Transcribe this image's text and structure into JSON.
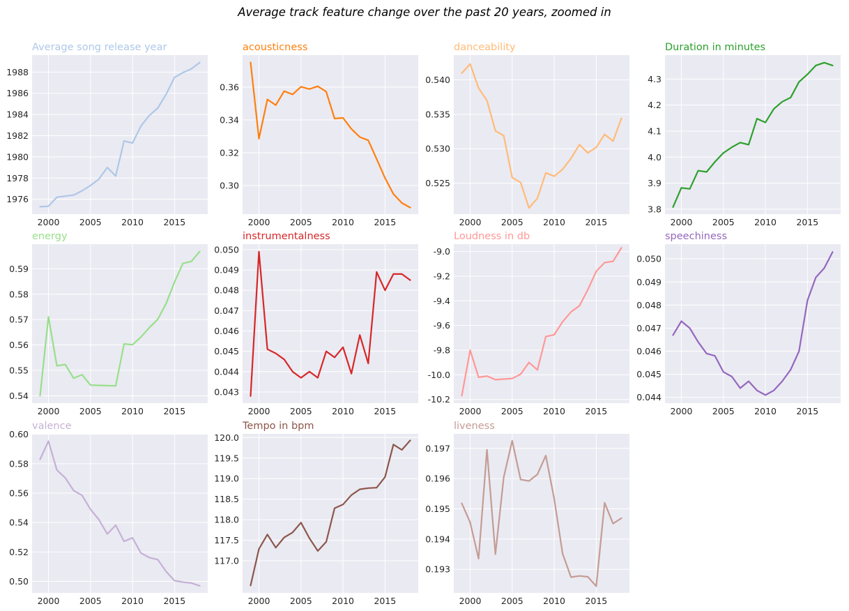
{
  "title": "Average track feature change over the past 20 years, zoomed in",
  "chart_data": [
    {
      "type": "line",
      "title": "Average song release year",
      "color": "#aec7e8",
      "x": [
        1999,
        2000,
        2001,
        2002,
        2003,
        2004,
        2005,
        2006,
        2007,
        2008,
        2009,
        2010,
        2011,
        2012,
        2013,
        2014,
        2015,
        2016,
        2017,
        2018
      ],
      "values": [
        1975.3,
        1975.35,
        1976.2,
        1976.3,
        1976.4,
        1976.8,
        1977.3,
        1977.9,
        1979.0,
        1978.2,
        1981.5,
        1981.3,
        1982.9,
        1983.9,
        1984.6,
        1985.9,
        1987.5,
        1987.95,
        1988.3,
        1988.9
      ],
      "yticks": [
        "1976",
        "1978",
        "1980",
        "1982",
        "1984",
        "1986",
        "1988"
      ],
      "xticks": [
        "2000",
        "2005",
        "2010",
        "2015"
      ],
      "xlim": [
        1998.05,
        2018.95
      ],
      "ylim": [
        1974.6,
        1989.6
      ],
      "grid": true
    },
    {
      "type": "line",
      "title": "acousticness",
      "color": "#ff7f0e",
      "x": [
        1999,
        2000,
        2001,
        2002,
        2003,
        2004,
        2005,
        2006,
        2007,
        2008,
        2009,
        2010,
        2011,
        2012,
        2013,
        2014,
        2015,
        2016,
        2017,
        2018
      ],
      "values": [
        0.375,
        0.3285,
        0.3525,
        0.349,
        0.3575,
        0.3555,
        0.3602,
        0.3588,
        0.3605,
        0.3572,
        0.3408,
        0.3412,
        0.3345,
        0.3295,
        0.3275,
        0.3162,
        0.3045,
        0.2948,
        0.2893,
        0.2865
      ],
      "yticks": [
        "0.30",
        "0.32",
        "0.34",
        "0.36"
      ],
      "xticks": [
        "2000",
        "2005",
        "2010",
        "2015"
      ],
      "xlim": [
        1998.05,
        2018.95
      ],
      "ylim": [
        0.2825,
        0.3795
      ],
      "grid": true
    },
    {
      "type": "line",
      "title": "danceability",
      "color": "#ffbb78",
      "x": [
        1999,
        2000,
        2001,
        2002,
        2003,
        2004,
        2005,
        2006,
        2007,
        2008,
        2009,
        2010,
        2011,
        2012,
        2013,
        2014,
        2015,
        2016,
        2017,
        2018
      ],
      "values": [
        0.541,
        0.5423,
        0.5388,
        0.537,
        0.5326,
        0.5319,
        0.5258,
        0.5251,
        0.5214,
        0.5228,
        0.5265,
        0.526,
        0.527,
        0.5286,
        0.5306,
        0.5294,
        0.5302,
        0.5321,
        0.5311,
        0.5344
      ],
      "yticks": [
        "0.525",
        "0.530",
        "0.535",
        "0.540"
      ],
      "xticks": [
        "2000",
        "2005",
        "2010",
        "2015"
      ],
      "xlim": [
        1998.05,
        2018.95
      ],
      "ylim": [
        0.5205,
        0.5436
      ],
      "grid": true
    },
    {
      "type": "line",
      "title": "Duration in minutes",
      "color": "#2ca02c",
      "x": [
        1999,
        2000,
        2001,
        2002,
        2003,
        2004,
        2005,
        2006,
        2007,
        2008,
        2009,
        2010,
        2011,
        2012,
        2013,
        2014,
        2015,
        2016,
        2017,
        2018
      ],
      "values": [
        3.808,
        3.882,
        3.878,
        3.948,
        3.943,
        3.982,
        4.016,
        4.038,
        4.056,
        4.048,
        4.148,
        4.133,
        4.185,
        4.213,
        4.229,
        4.289,
        4.318,
        4.352,
        4.363,
        4.352
      ],
      "yticks": [
        "3.8",
        "3.9",
        "4.0",
        "4.1",
        "4.2",
        "4.3"
      ],
      "xticks": [
        "2000",
        "2005",
        "2010",
        "2015"
      ],
      "xlim": [
        1998.05,
        2018.95
      ],
      "ylim": [
        3.781,
        4.392
      ],
      "grid": true
    },
    {
      "type": "line",
      "title": "energy",
      "color": "#98df8a",
      "x": [
        1999,
        2000,
        2001,
        2002,
        2003,
        2004,
        2005,
        2006,
        2007,
        2008,
        2009,
        2010,
        2011,
        2012,
        2013,
        2014,
        2015,
        2016,
        2017,
        2018
      ],
      "values": [
        0.54,
        0.5711,
        0.5518,
        0.5523,
        0.5469,
        0.5483,
        0.5442,
        0.5441,
        0.544,
        0.5439,
        0.5604,
        0.5601,
        0.5631,
        0.5668,
        0.5701,
        0.5763,
        0.5848,
        0.5921,
        0.5929,
        0.5968
      ],
      "yticks": [
        "0.54",
        "0.55",
        "0.56",
        "0.57",
        "0.58",
        "0.59"
      ],
      "xticks": [
        "2000",
        "2005",
        "2010",
        "2015"
      ],
      "xlim": [
        1998.05,
        2018.95
      ],
      "ylim": [
        0.5371,
        0.5997
      ],
      "grid": true
    },
    {
      "type": "line",
      "title": "instrumentalness",
      "color": "#d62728",
      "x": [
        1999,
        2000,
        2001,
        2002,
        2003,
        2004,
        2005,
        2006,
        2007,
        2008,
        2009,
        2010,
        2011,
        2012,
        2013,
        2014,
        2015,
        2016,
        2017,
        2018
      ],
      "values": [
        0.0428,
        0.0499,
        0.0451,
        0.0449,
        0.0446,
        0.044,
        0.0437,
        0.044,
        0.0437,
        0.045,
        0.0447,
        0.0452,
        0.0439,
        0.0458,
        0.0444,
        0.0489,
        0.048,
        0.0488,
        0.0488,
        0.0485
      ],
      "yticks": [
        "0.043",
        "0.044",
        "0.045",
        "0.046",
        "0.047",
        "0.048",
        "0.049",
        "0.050"
      ],
      "xticks": [
        "2000",
        "2005",
        "2010",
        "2015"
      ],
      "xlim": [
        1998.05,
        2018.95
      ],
      "ylim": [
        0.04245,
        0.05027
      ],
      "grid": true
    },
    {
      "type": "line",
      "title": "Loudness in db",
      "color": "#ff9896",
      "x": [
        1999,
        2000,
        2001,
        2002,
        2003,
        2004,
        2005,
        2006,
        2007,
        2008,
        2009,
        2010,
        2011,
        2012,
        2013,
        2014,
        2015,
        2016,
        2017,
        2018
      ],
      "values": [
        -10.17,
        -9.8,
        -10.02,
        -10.01,
        -10.04,
        -10.035,
        -10.03,
        -9.995,
        -9.9,
        -9.96,
        -9.69,
        -9.675,
        -9.57,
        -9.49,
        -9.44,
        -9.31,
        -9.16,
        -9.09,
        -9.08,
        -8.97
      ],
      "yticks": [
        "-10.2",
        "-10.0",
        "-9.8",
        "-9.6",
        "-9.4",
        "-9.2",
        "-9.0"
      ],
      "xticks": [
        "2000",
        "2005",
        "2010",
        "2015"
      ],
      "xlim": [
        1998.05,
        2018.95
      ],
      "ylim": [
        -10.23,
        -8.94
      ],
      "grid": true
    },
    {
      "type": "line",
      "title": "speechiness",
      "color": "#9467bd",
      "x": [
        1999,
        2000,
        2001,
        2002,
        2003,
        2004,
        2005,
        2006,
        2007,
        2008,
        2009,
        2010,
        2011,
        2012,
        2013,
        2014,
        2015,
        2016,
        2017,
        2018
      ],
      "values": [
        0.0467,
        0.0473,
        0.047,
        0.0464,
        0.0459,
        0.0458,
        0.0451,
        0.0449,
        0.0444,
        0.0447,
        0.0443,
        0.0441,
        0.0443,
        0.0447,
        0.0452,
        0.046,
        0.0482,
        0.0492,
        0.0496,
        0.0503
      ],
      "yticks": [
        "0.044",
        "0.045",
        "0.046",
        "0.047",
        "0.048",
        "0.049",
        "0.050"
      ],
      "xticks": [
        "2000",
        "2005",
        "2010",
        "2015"
      ],
      "xlim": [
        1998.05,
        2018.95
      ],
      "ylim": [
        0.04375,
        0.05064
      ],
      "grid": true
    },
    {
      "type": "line",
      "title": "valence",
      "color": "#c5b0d5",
      "x": [
        1999,
        2000,
        2001,
        2002,
        2003,
        2004,
        2005,
        2006,
        2007,
        2008,
        2009,
        2010,
        2011,
        2012,
        2013,
        2014,
        2015,
        2016,
        2017,
        2018
      ],
      "values": [
        0.583,
        0.5953,
        0.5757,
        0.5704,
        0.5617,
        0.5585,
        0.549,
        0.542,
        0.5322,
        0.5382,
        0.5272,
        0.5296,
        0.5193,
        0.5162,
        0.5148,
        0.5067,
        0.5005,
        0.4995,
        0.4989,
        0.497
      ],
      "yticks": [
        "0.50",
        "0.52",
        "0.54",
        "0.56",
        "0.58",
        "0.60"
      ],
      "xticks": [
        "2000",
        "2005",
        "2010",
        "2015"
      ],
      "xlim": [
        1998.05,
        2018.95
      ],
      "ylim": [
        0.4922,
        0.6003
      ],
      "grid": true
    },
    {
      "type": "line",
      "title": "Tempo in bpm",
      "color": "#8c564b",
      "x": [
        1999,
        2000,
        2001,
        2002,
        2003,
        2004,
        2005,
        2006,
        2007,
        2008,
        2009,
        2010,
        2011,
        2012,
        2013,
        2014,
        2015,
        2016,
        2017,
        2018
      ],
      "values": [
        116.4,
        117.29,
        117.64,
        117.32,
        117.57,
        117.69,
        117.93,
        117.55,
        117.24,
        117.46,
        118.28,
        118.37,
        118.6,
        118.74,
        118.77,
        118.78,
        119.04,
        119.83,
        119.7,
        119.93
      ],
      "yticks": [
        "117.0",
        "117.5",
        "118.0",
        "118.5",
        "119.0",
        "119.5",
        "120.0"
      ],
      "xticks": [
        "2000",
        "2005",
        "2010",
        "2015"
      ],
      "xlim": [
        1998.05,
        2018.95
      ],
      "ylim": [
        116.22,
        120.09
      ],
      "grid": true
    },
    {
      "type": "line",
      "title": "liveness",
      "color": "#c49c94",
      "x": [
        1999,
        2000,
        2001,
        2002,
        2003,
        2004,
        2005,
        2006,
        2007,
        2008,
        2009,
        2010,
        2011,
        2012,
        2013,
        2014,
        2015,
        2016,
        2017,
        2018
      ],
      "values": [
        0.19518,
        0.19455,
        0.19335,
        0.19695,
        0.1935,
        0.19605,
        0.19725,
        0.19597,
        0.19592,
        0.19614,
        0.19676,
        0.19533,
        0.19352,
        0.19274,
        0.19278,
        0.19275,
        0.19244,
        0.1952,
        0.19451,
        0.19469
      ],
      "yticks": [
        "0.193",
        "0.194",
        "0.195",
        "0.196",
        "0.197"
      ],
      "xticks": [
        "2000",
        "2005",
        "2010",
        "2015"
      ],
      "xlim": [
        1998.05,
        2018.95
      ],
      "ylim": [
        0.19222,
        0.19748
      ],
      "grid": true
    }
  ]
}
